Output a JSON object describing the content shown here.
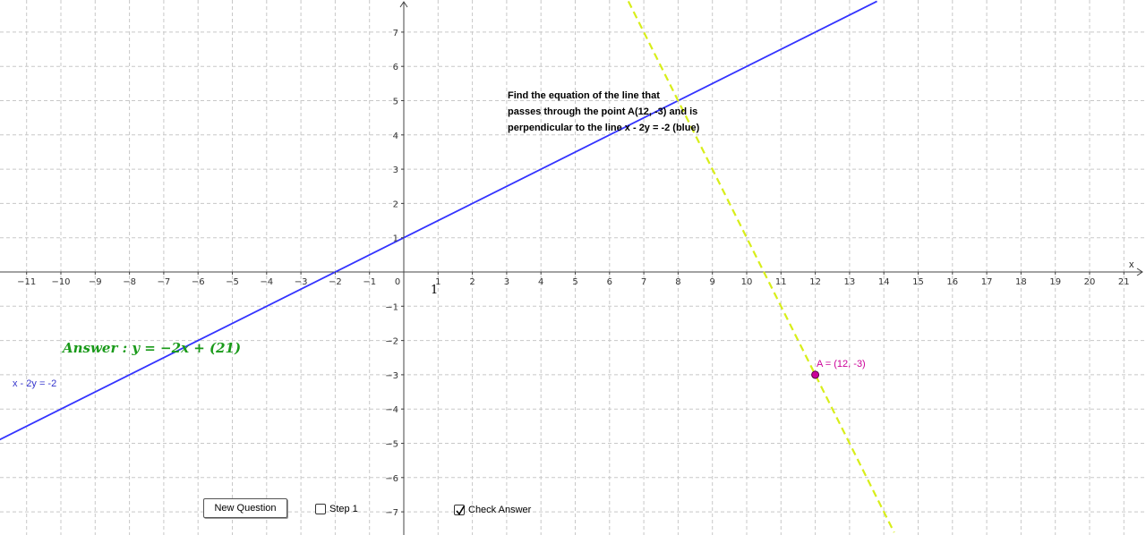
{
  "question": {
    "lines": [
      "Find the equation of the line that",
      "passes through the point A(12, -3) and is",
      "perpendicular to the line x - 2y = -2 (blue)"
    ]
  },
  "answer": {
    "text": "Answer : y = −2x + (21)"
  },
  "given_line": {
    "label": "x - 2y = -2",
    "color": "#3333ff",
    "slope": 0.5,
    "intercept": 1
  },
  "answer_line": {
    "color": "#d8ee1a",
    "slope": -2,
    "intercept": 21,
    "style": "dashed"
  },
  "point_a": {
    "label": "A = (12, -3)",
    "x": 12,
    "y": -3,
    "color": "#cc0099"
  },
  "axes": {
    "x_name": "x",
    "unit_label": "1",
    "xlim": [
      -11.8,
      21.6
    ],
    "ylim": [
      -7.6,
      7.9
    ],
    "x_ticks": [
      -11,
      -10,
      -9,
      -8,
      -7,
      -6,
      -5,
      -4,
      -3,
      -2,
      -1,
      0,
      1,
      2,
      3,
      4,
      5,
      6,
      7,
      8,
      9,
      10,
      11,
      12,
      13,
      14,
      15,
      16,
      17,
      18,
      19,
      20,
      21
    ],
    "y_ticks": [
      -7,
      -6,
      -5,
      -4,
      -3,
      -2,
      -1,
      1,
      2,
      3,
      4,
      5,
      6,
      7
    ],
    "grid": true
  },
  "controls": {
    "new_question": "New Question",
    "step1": {
      "label": "Step 1",
      "checked": false
    },
    "check_answer": {
      "label": "Check Answer",
      "checked": true
    }
  },
  "colors": {
    "grid": "#c8c8c8",
    "axis": "#444444"
  }
}
